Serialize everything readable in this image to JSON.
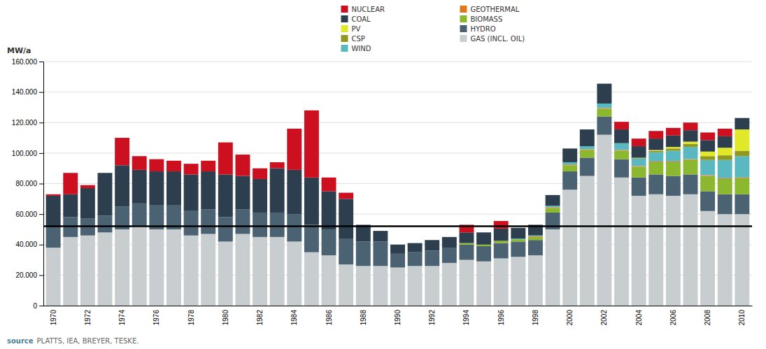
{
  "chart_data": {
    "type": "bar",
    "stacked": true,
    "grid": true,
    "legend": "top",
    "y_label": "MW/a",
    "annotations": [
      "source",
      "PLATTS, IEA, BREYER, TESKE."
    ],
    "categories": [
      "1970",
      null,
      "1972",
      null,
      "1974",
      null,
      "1976",
      null,
      "1978",
      null,
      "1980",
      null,
      "1982",
      null,
      "1984",
      null,
      "1986",
      null,
      "1988",
      null,
      "1990",
      null,
      "1992",
      null,
      "1994",
      null,
      "1996",
      null,
      "1998",
      null,
      "2000",
      null,
      "2002",
      null,
      "2004",
      null,
      "2006",
      null,
      "2008",
      null,
      "2010"
    ],
    "series": [
      {
        "name": "GAS (INCL. OIL)",
        "color": "#c8cdd0",
        "values": [
          38000,
          45000,
          46000,
          48000,
          50000,
          52000,
          50000,
          50000,
          46000,
          47000,
          42000,
          47000,
          45000,
          45000,
          42000,
          35000,
          33000,
          27000,
          26000,
          26000,
          25000,
          26000,
          26000,
          28000,
          30000,
          29000,
          31000,
          32000,
          33000,
          50000,
          76000,
          85000,
          112000,
          84000,
          72000,
          73000,
          72000,
          73000,
          62000,
          60000,
          60000
        ]
      },
      {
        "name": "HYDRO",
        "color": "#4a6272",
        "values": [
          13000,
          13000,
          11000,
          11000,
          15000,
          15000,
          16000,
          16000,
          16000,
          16000,
          16000,
          16000,
          16000,
          16000,
          18000,
          18000,
          17000,
          17000,
          16000,
          16000,
          9000,
          9000,
          10000,
          10000,
          10000,
          10000,
          10000,
          10000,
          10000,
          11000,
          12000,
          12000,
          12000,
          12000,
          12000,
          13000,
          13000,
          13000,
          13000,
          13000,
          13000
        ]
      },
      {
        "name": "BIOMASS",
        "color": "#8cb830",
        "values": [
          0,
          0,
          0,
          0,
          0,
          0,
          0,
          0,
          0,
          0,
          0,
          0,
          0,
          0,
          0,
          0,
          0,
          0,
          0,
          0,
          0,
          0,
          0,
          0,
          1000,
          1000,
          1500,
          1500,
          2000,
          3000,
          4000,
          5000,
          5000,
          5500,
          7000,
          8000,
          9000,
          9500,
          10000,
          10000,
          10500
        ]
      },
      {
        "name": "GEOTHERMAL",
        "color": "#e07820",
        "values": [
          0,
          0,
          0,
          0,
          0,
          0,
          0,
          0,
          0,
          0,
          0,
          0,
          0,
          0,
          0,
          0,
          0,
          0,
          0,
          0,
          0,
          0,
          0,
          0,
          0,
          0,
          0,
          0,
          500,
          500,
          500,
          500,
          500,
          500,
          500,
          500,
          500,
          500,
          500,
          500,
          500
        ]
      },
      {
        "name": "WIND",
        "color": "#5ab8c0",
        "values": [
          0,
          0,
          0,
          0,
          0,
          0,
          0,
          0,
          0,
          0,
          0,
          0,
          0,
          0,
          0,
          0,
          0,
          0,
          0,
          0,
          0,
          0,
          0,
          0,
          0,
          0,
          0,
          500,
          500,
          1000,
          1500,
          2000,
          3000,
          4500,
          5000,
          6000,
          7000,
          8000,
          10000,
          12000,
          14000
        ]
      },
      {
        "name": "CSP",
        "color": "#909820",
        "values": [
          0,
          0,
          0,
          0,
          0,
          0,
          0,
          0,
          0,
          0,
          0,
          0,
          0,
          0,
          0,
          0,
          0,
          0,
          0,
          0,
          0,
          0,
          0,
          0,
          0,
          0,
          0,
          0,
          0,
          0,
          0,
          0,
          0,
          0,
          500,
          1000,
          1500,
          2000,
          2500,
          3000,
          3500
        ]
      },
      {
        "name": "PV",
        "color": "#e0e828",
        "values": [
          0,
          0,
          0,
          0,
          0,
          0,
          0,
          0,
          0,
          0,
          0,
          0,
          0,
          0,
          0,
          0,
          0,
          0,
          0,
          0,
          0,
          0,
          0,
          0,
          0,
          0,
          0,
          0,
          0,
          0,
          0,
          0,
          0,
          0,
          0,
          500,
          1000,
          1500,
          3000,
          5000,
          14000
        ]
      },
      {
        "name": "COAL",
        "color": "#2d3e4e",
        "values": [
          21000,
          15000,
          20000,
          28000,
          27000,
          22000,
          22000,
          22000,
          24000,
          25000,
          28000,
          22000,
          22000,
          29000,
          29000,
          31000,
          25000,
          26000,
          11000,
          7000,
          6000,
          6000,
          7000,
          7000,
          7000,
          8000,
          8000,
          7000,
          7000,
          7000,
          9000,
          11000,
          13000,
          9000,
          7500,
          7500,
          7500,
          7500,
          7500,
          7500,
          7500
        ]
      },
      {
        "name": "NUCLEAR",
        "color": "#cc1020",
        "values": [
          1000,
          14000,
          2000,
          0,
          18000,
          9000,
          8000,
          7000,
          7000,
          7000,
          21000,
          14000,
          7000,
          4000,
          27000,
          44000,
          9000,
          4000,
          0,
          0,
          0,
          0,
          0,
          0,
          5000,
          0,
          5000,
          0,
          0,
          0,
          0,
          0,
          0,
          5000,
          5000,
          5000,
          5000,
          5000,
          5000,
          5000,
          0
        ]
      }
    ],
    "reference_lines": [
      {
        "value": 52000,
        "color": "#000000"
      }
    ],
    "ylim": [
      0,
      160000
    ],
    "yticks": [
      0,
      {
        "value": 20000,
        "label": "20.000"
      },
      {
        "value": 40000,
        "label": "40.000"
      },
      {
        "value": 60000,
        "label": "60.000"
      },
      {
        "value": 80000,
        "label": "80.000"
      },
      {
        "value": 100000,
        "label": "100.000"
      },
      {
        "value": 120000,
        "label": "120.000"
      },
      {
        "value": 140000,
        "label": "140.000"
      },
      {
        "value": 160000,
        "label": "160.000"
      }
    ]
  }
}
